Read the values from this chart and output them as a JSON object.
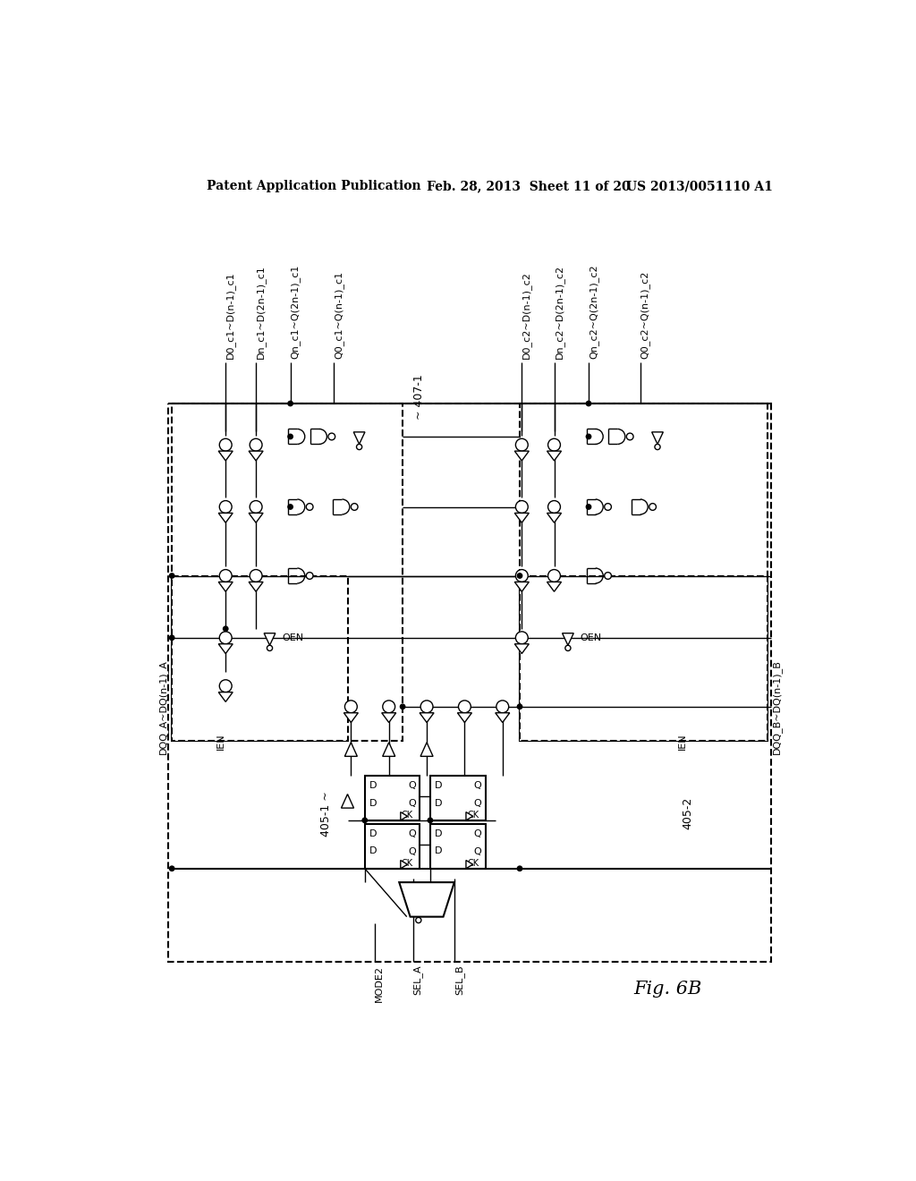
{
  "bg_color": "#ffffff",
  "text_color": "#000000",
  "header_left": "Patent Application Publication",
  "header_mid": "Feb. 28, 2013  Sheet 11 of 20",
  "header_right": "US 2013/0051110 A1",
  "figure_label": "Fig. 6B",
  "top_labels_left": [
    "D0_c1~D(n-1)_c1",
    "Dn_c1~D(2n-1)_c1",
    "Qn_c1~Q(2n-1)_c1",
    "Q0_c1~Q(n-1)_c1"
  ],
  "top_labels_right": [
    "D0_c2~D(n-1)_c2",
    "Dn_c2~D(2n-1)_c2",
    "Qn_c2~Q(2n-1)_c2",
    "Q0_c2~Q(n-1)_c2"
  ],
  "center_label": "~ 407-1",
  "left_block_label": "405-1 ~",
  "right_block_label": "405-2",
  "side_labels_left": [
    "DQQ_A~DQ(n-1)_A",
    "IEN"
  ],
  "side_labels_right": [
    "DQQ_B~DQ(n-1)_B",
    "IEN"
  ],
  "bottom_labels": [
    "MODE2",
    "SEL_A",
    "SEL_B"
  ],
  "oen_label": "OEN"
}
